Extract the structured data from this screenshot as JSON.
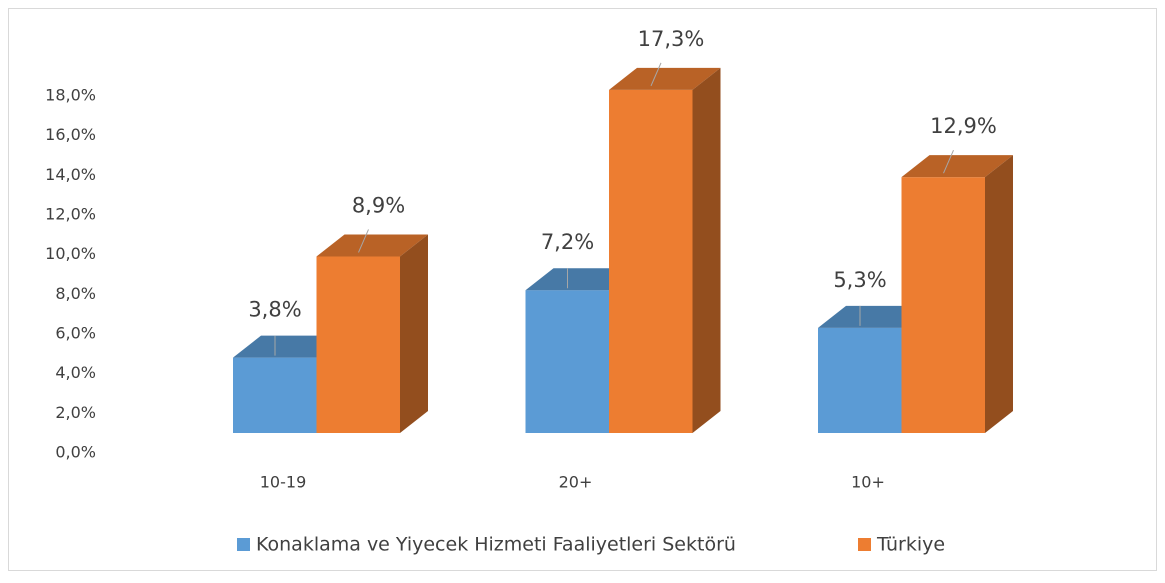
{
  "chart_data": {
    "type": "bar3d",
    "categories": [
      "10-19",
      "20+",
      "10+"
    ],
    "series": [
      {
        "name": "Konaklama ve Yiyecek Hizmeti Faaliyetleri Sektörü",
        "color": "#5b9bd5",
        "values": [
          3.8,
          7.2,
          5.3
        ],
        "value_labels": [
          "3,8%",
          "7,2%",
          "5,3%"
        ]
      },
      {
        "name": "Türkiye",
        "color": "#ed7d31",
        "values": [
          8.9,
          17.3,
          12.9
        ],
        "value_labels": [
          "8,9%",
          "17,3%",
          "12,9%"
        ]
      }
    ],
    "ylim": [
      0,
      18
    ],
    "yticks": [
      {
        "value": 0,
        "label": "0,0%"
      },
      {
        "value": 2,
        "label": "2,0%"
      },
      {
        "value": 4,
        "label": "4,0%"
      },
      {
        "value": 6,
        "label": "6,0%"
      },
      {
        "value": 8,
        "label": "8,0%"
      },
      {
        "value": 10,
        "label": "10,0%"
      },
      {
        "value": 12,
        "label": "12,0%"
      },
      {
        "value": 14,
        "label": "14,0%"
      },
      {
        "value": 16,
        "label": "16,0%"
      },
      {
        "value": 18,
        "label": "18,0%"
      }
    ],
    "legend": "bottom"
  }
}
